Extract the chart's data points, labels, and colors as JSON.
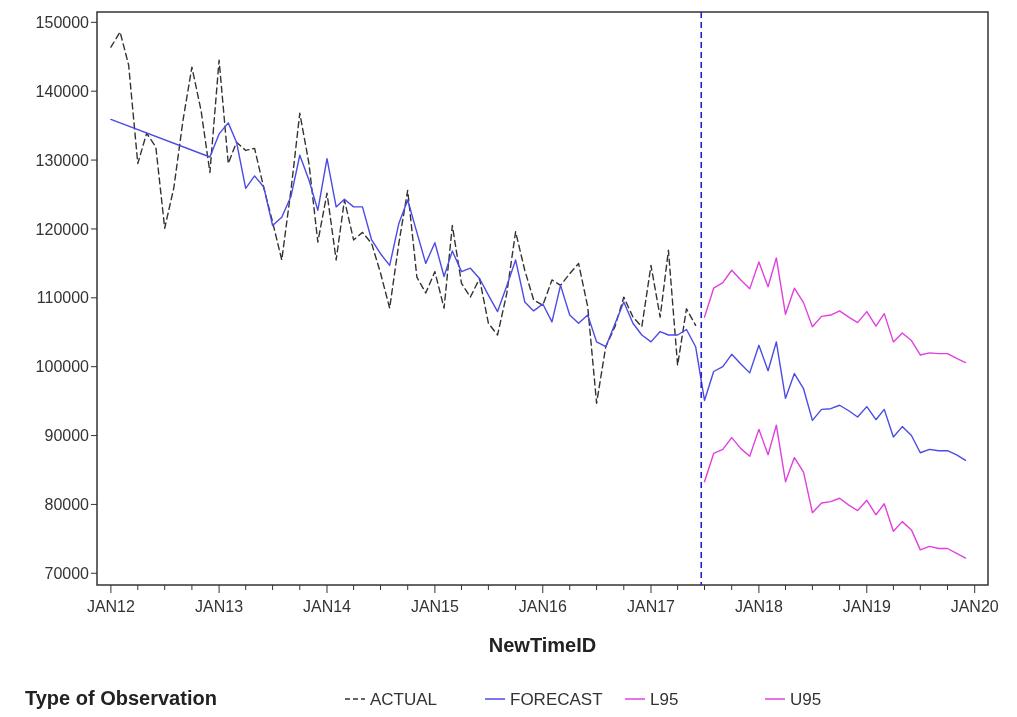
{
  "chart_data": {
    "type": "line",
    "xlabel": "NewTimeID",
    "legend_title": "Type of Observation",
    "legend": "bottom",
    "grid": false,
    "marker": "none",
    "xlim": [
      "2011-11-15",
      "2020-02-15"
    ],
    "xticks": [
      {
        "value": "2012-01",
        "label": "JAN12"
      },
      {
        "value": "2012-04",
        "label": null
      },
      {
        "value": "2012-07",
        "label": null
      },
      {
        "value": "2012-10",
        "label": null
      },
      {
        "value": "2013-01",
        "label": "JAN13"
      },
      {
        "value": "2013-04",
        "label": null
      },
      {
        "value": "2013-07",
        "label": null
      },
      {
        "value": "2013-10",
        "label": null
      },
      {
        "value": "2014-01",
        "label": "JAN14"
      },
      {
        "value": "2014-04",
        "label": null
      },
      {
        "value": "2014-07",
        "label": null
      },
      {
        "value": "2014-10",
        "label": null
      },
      {
        "value": "2015-01",
        "label": "JAN15"
      },
      {
        "value": "2015-04",
        "label": null
      },
      {
        "value": "2015-07",
        "label": null
      },
      {
        "value": "2015-10",
        "label": null
      },
      {
        "value": "2016-01",
        "label": "JAN16"
      },
      {
        "value": "2016-04",
        "label": null
      },
      {
        "value": "2016-07",
        "label": null
      },
      {
        "value": "2016-10",
        "label": null
      },
      {
        "value": "2017-01",
        "label": "JAN17"
      },
      {
        "value": "2017-04",
        "label": null
      },
      {
        "value": "2017-07",
        "label": null
      },
      {
        "value": "2017-10",
        "label": null
      },
      {
        "value": "2018-01",
        "label": "JAN18"
      },
      {
        "value": "2018-04",
        "label": null
      },
      {
        "value": "2018-07",
        "label": null
      },
      {
        "value": "2018-10",
        "label": null
      },
      {
        "value": "2019-01",
        "label": "JAN19"
      },
      {
        "value": "2019-04",
        "label": null
      },
      {
        "value": "2019-07",
        "label": null
      },
      {
        "value": "2019-10",
        "label": null
      },
      {
        "value": "2020-01",
        "label": "JAN20"
      }
    ],
    "ylim": [
      68300,
      151500
    ],
    "yticks": [
      70000,
      80000,
      90000,
      100000,
      110000,
      120000,
      130000,
      140000,
      150000
    ],
    "ref_lines": [
      {
        "axis": "x",
        "value": "2017-06-20",
        "color": "#2020d0",
        "line_style": "dashed"
      }
    ],
    "series": [
      {
        "name": "ACTUAL",
        "color": "#333333",
        "line_style": "dashed",
        "x": [
          "2012-01",
          "2012-02",
          "2012-03",
          "2012-04",
          "2012-05",
          "2012-06",
          "2012-07",
          "2012-08",
          "2012-09",
          "2012-10",
          "2012-11",
          "2012-12",
          "2013-01",
          "2013-02",
          "2013-03",
          "2013-04",
          "2013-05",
          "2013-06",
          "2013-07",
          "2013-08",
          "2013-09",
          "2013-10",
          "2013-11",
          "2013-12",
          "2014-01",
          "2014-02",
          "2014-03",
          "2014-04",
          "2014-05",
          "2014-06",
          "2014-07",
          "2014-08",
          "2014-09",
          "2014-10",
          "2014-11",
          "2014-12",
          "2015-01",
          "2015-02",
          "2015-03",
          "2015-04",
          "2015-05",
          "2015-06",
          "2015-07",
          "2015-08",
          "2015-09",
          "2015-10",
          "2015-11",
          "2015-12",
          "2016-01",
          "2016-02",
          "2016-03",
          "2016-04",
          "2016-05",
          "2016-06",
          "2016-07",
          "2016-08",
          "2016-09",
          "2016-10",
          "2016-11",
          "2016-12",
          "2017-01",
          "2017-02",
          "2017-03",
          "2017-04",
          "2017-05",
          "2017-06"
        ],
        "values": [
          146400,
          148600,
          143800,
          129500,
          133900,
          131900,
          120100,
          126000,
          135800,
          143500,
          137200,
          128200,
          144500,
          129500,
          132600,
          131400,
          131700,
          126000,
          121000,
          115500,
          125600,
          136800,
          129500,
          118100,
          125200,
          115500,
          124200,
          118400,
          119500,
          117900,
          113600,
          108500,
          117900,
          125600,
          113000,
          110700,
          113800,
          108500,
          120500,
          112100,
          110100,
          112800,
          106300,
          104600,
          110600,
          119600,
          114000,
          109700,
          108900,
          112600,
          111800,
          113500,
          115000,
          108700,
          94700,
          102900,
          105800,
          110100,
          107200,
          105800,
          114700,
          107200,
          116900,
          100200,
          108400,
          106000
        ]
      },
      {
        "name": "FORECAST",
        "color": "#4b4be6",
        "line_style": "solid",
        "x": [
          "2012-01",
          "2012-12",
          "2013-01",
          "2013-02",
          "2013-03",
          "2013-04",
          "2013-05",
          "2013-06",
          "2013-07",
          "2013-08",
          "2013-09",
          "2013-10",
          "2013-11",
          "2013-12",
          "2014-01",
          "2014-02",
          "2014-03",
          "2014-04",
          "2014-05",
          "2014-06",
          "2014-07",
          "2014-08",
          "2014-09",
          "2014-10",
          "2014-11",
          "2014-12",
          "2015-01",
          "2015-02",
          "2015-03",
          "2015-04",
          "2015-05",
          "2015-06",
          "2015-07",
          "2015-08",
          "2015-09",
          "2015-10",
          "2015-11",
          "2015-12",
          "2016-01",
          "2016-02",
          "2016-03",
          "2016-04",
          "2016-05",
          "2016-06",
          "2016-07",
          "2016-08",
          "2016-09",
          "2016-10",
          "2016-11",
          "2016-12",
          "2017-01",
          "2017-02",
          "2017-03",
          "2017-04",
          "2017-05",
          "2017-06",
          "2017-07",
          "2017-08",
          "2017-09",
          "2017-10",
          "2017-11",
          "2017-12",
          "2018-01",
          "2018-02",
          "2018-03",
          "2018-04",
          "2018-05",
          "2018-06",
          "2018-07",
          "2018-08",
          "2018-09",
          "2018-10",
          "2018-11",
          "2018-12",
          "2019-01",
          "2019-02",
          "2019-03",
          "2019-04",
          "2019-05",
          "2019-06",
          "2019-07",
          "2019-08",
          "2019-09",
          "2019-10",
          "2019-11",
          "2019-12"
        ],
        "values": [
          135900,
          130450,
          133800,
          135400,
          132600,
          125900,
          127700,
          126100,
          120500,
          121700,
          124700,
          130700,
          127100,
          122700,
          130200,
          123200,
          124300,
          123200,
          123200,
          118400,
          116400,
          114700,
          120800,
          124200,
          119500,
          115000,
          118000,
          113100,
          116800,
          113800,
          114300,
          112800,
          110400,
          108000,
          111700,
          115500,
          109400,
          108100,
          109100,
          106500,
          111800,
          107500,
          106300,
          107500,
          103600,
          102900,
          106200,
          109400,
          106300,
          104600,
          103600,
          105100,
          104600,
          104600,
          105400,
          102900,
          95100,
          99300,
          100000,
          101800,
          100400,
          99100,
          103100,
          99400,
          103600,
          95400,
          99000,
          96800,
          92200,
          93800,
          93900,
          94400,
          93600,
          92700,
          94200,
          92300,
          93800,
          89800,
          91300,
          90000,
          87500,
          88000,
          87800,
          87800,
          87200,
          86400
        ]
      },
      {
        "name": "L95",
        "color": "#e040e0",
        "line_style": "solid",
        "x": [
          "2017-07",
          "2017-08",
          "2017-09",
          "2017-10",
          "2017-11",
          "2017-12",
          "2018-01",
          "2018-02",
          "2018-03",
          "2018-04",
          "2018-05",
          "2018-06",
          "2018-07",
          "2018-08",
          "2018-09",
          "2018-10",
          "2018-11",
          "2018-12",
          "2019-01",
          "2019-02",
          "2019-03",
          "2019-04",
          "2019-05",
          "2019-06",
          "2019-07",
          "2019-08",
          "2019-09",
          "2019-10",
          "2019-11",
          "2019-12"
        ],
        "values": [
          83300,
          87400,
          88000,
          89700,
          88100,
          87000,
          90900,
          87200,
          91500,
          83300,
          86800,
          84700,
          78800,
          80200,
          80400,
          80900,
          79900,
          79100,
          80600,
          78500,
          80100,
          76100,
          77500,
          76300,
          73400,
          73900,
          73600,
          73600,
          72900,
          72200
        ]
      },
      {
        "name": "U95",
        "color": "#e040e0",
        "line_style": "solid",
        "x": [
          "2017-07",
          "2017-08",
          "2017-09",
          "2017-10",
          "2017-11",
          "2017-12",
          "2018-01",
          "2018-02",
          "2018-03",
          "2018-04",
          "2018-05",
          "2018-06",
          "2018-07",
          "2018-08",
          "2018-09",
          "2018-10",
          "2018-11",
          "2018-12",
          "2019-01",
          "2019-02",
          "2019-03",
          "2019-04",
          "2019-05",
          "2019-06",
          "2019-07",
          "2019-08",
          "2019-09",
          "2019-10",
          "2019-11",
          "2019-12"
        ],
        "values": [
          107200,
          111400,
          112200,
          114000,
          112600,
          111300,
          115200,
          111600,
          115800,
          107600,
          111400,
          109300,
          105800,
          107300,
          107500,
          108100,
          107200,
          106400,
          108000,
          105900,
          107700,
          103600,
          104900,
          103800,
          101700,
          102000,
          101900,
          101900,
          101200,
          100600
        ]
      }
    ]
  }
}
